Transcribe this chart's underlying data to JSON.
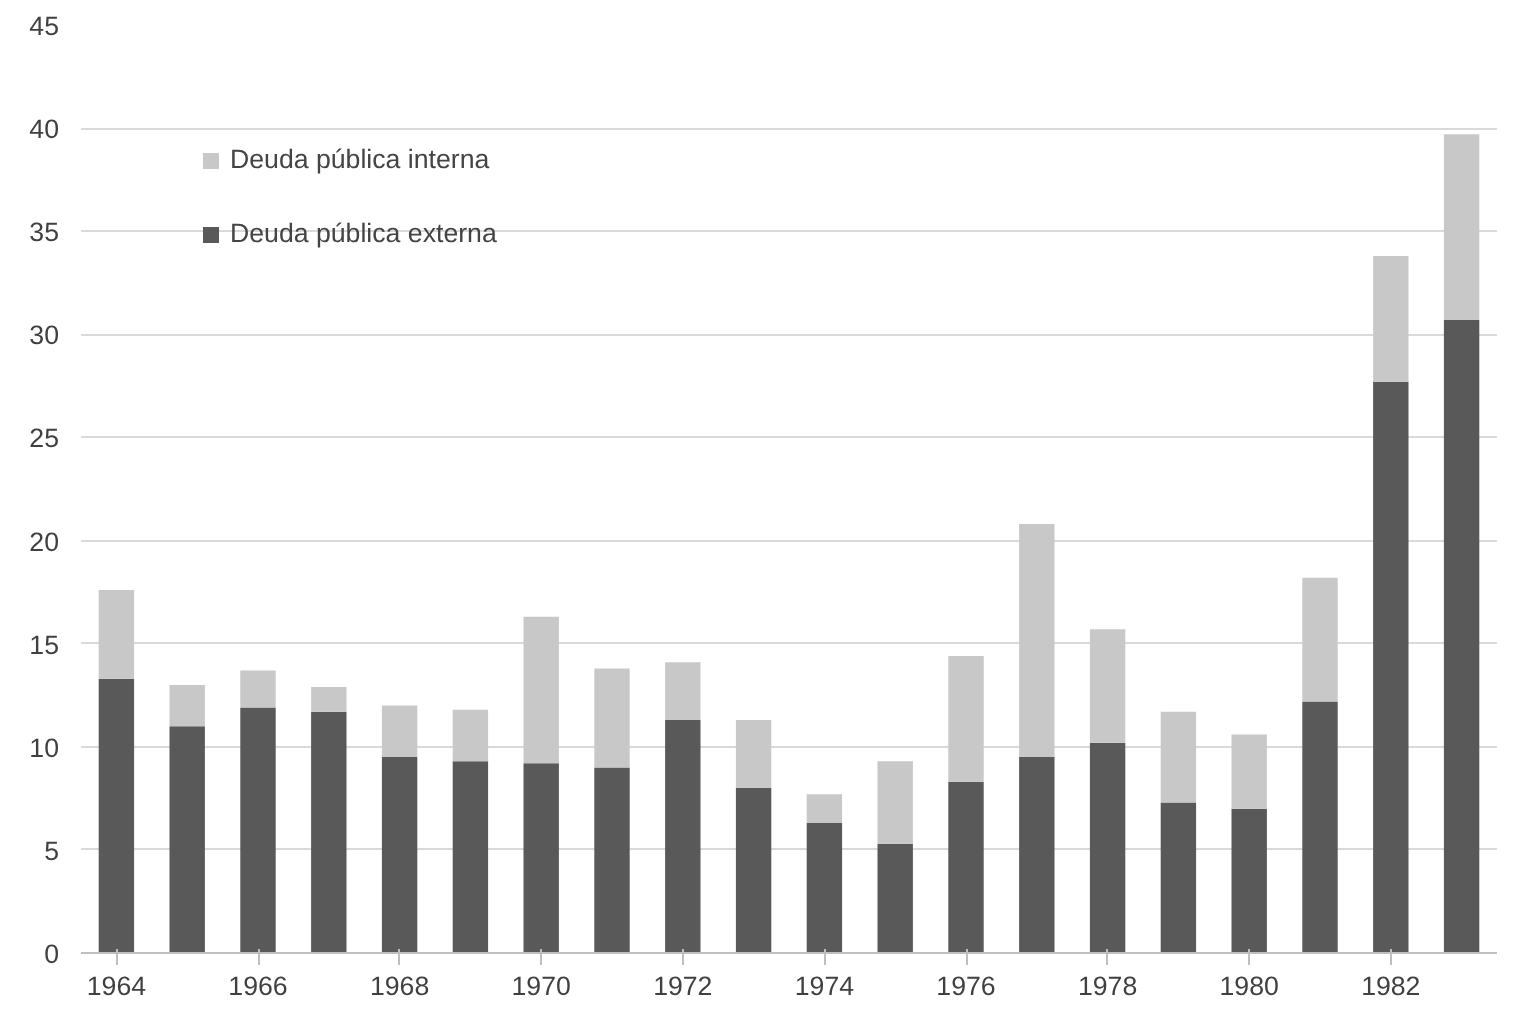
{
  "chart_data": {
    "type": "bar",
    "stacked": true,
    "x": [
      1964,
      1965,
      1966,
      1967,
      1968,
      1969,
      1970,
      1971,
      1972,
      1973,
      1974,
      1975,
      1976,
      1977,
      1978,
      1979,
      1980,
      1981,
      1982,
      1983
    ],
    "series": [
      {
        "name": "Deuda pública externa",
        "color": "#595959",
        "values": [
          13.3,
          11.0,
          11.9,
          11.7,
          9.5,
          9.3,
          9.2,
          9.0,
          11.3,
          8.0,
          6.3,
          5.3,
          8.3,
          9.5,
          10.2,
          7.3,
          7.0,
          12.2,
          27.7,
          30.7
        ]
      },
      {
        "name": "Deuda pública interna",
        "color": "#c8c8c8",
        "values": [
          4.3,
          2.0,
          1.8,
          1.2,
          2.5,
          2.5,
          7.1,
          4.8,
          2.8,
          3.3,
          1.4,
          4.0,
          6.1,
          11.3,
          5.5,
          4.4,
          3.6,
          6.0,
          6.1,
          9.0
        ]
      }
    ],
    "xlim": [
      1963.5,
      1983.5
    ],
    "xticks": [
      1964,
      1966,
      1968,
      1970,
      1972,
      1974,
      1976,
      1978,
      1980,
      1982
    ],
    "ylim": [
      0,
      45
    ],
    "yticks": [
      0,
      5,
      10,
      15,
      20,
      25,
      30,
      35,
      40,
      45
    ],
    "grid": "y",
    "legend": "top left"
  }
}
